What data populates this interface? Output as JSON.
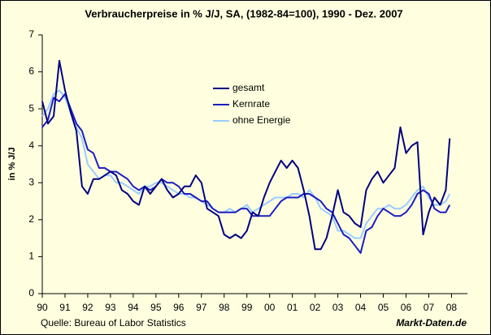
{
  "chart_data": {
    "type": "line",
    "title": "Verbraucherpreise in % J/J, SA, (1982-84=100), 1990 - Dez. 2007",
    "y_label": "in % J/J",
    "source": "Quelle: Bureau of Labor Statistics",
    "watermark": "Markt-Daten.de",
    "legend": "upper center",
    "grid": false,
    "xlim": [
      1990,
      2008.7
    ],
    "ylim": [
      0,
      7
    ],
    "yticks": [
      0,
      1,
      2,
      3,
      4,
      5,
      6,
      7
    ],
    "xticks": [
      {
        "value": 1990,
        "label": "90"
      },
      {
        "value": 1991,
        "label": "91"
      },
      {
        "value": 1992,
        "label": "92"
      },
      {
        "value": 1993,
        "label": "93"
      },
      {
        "value": 1994,
        "label": "94"
      },
      {
        "value": 1995,
        "label": "95"
      },
      {
        "value": 1996,
        "label": "96"
      },
      {
        "value": 1997,
        "label": "97"
      },
      {
        "value": 1998,
        "label": "98"
      },
      {
        "value": 1999,
        "label": "99"
      },
      {
        "value": 2000,
        "label": "00"
      },
      {
        "value": 2001,
        "label": "01"
      },
      {
        "value": 2002,
        "label": "02"
      },
      {
        "value": 2003,
        "label": "03"
      },
      {
        "value": 2004,
        "label": "04"
      },
      {
        "value": 2005,
        "label": "05"
      },
      {
        "value": 2006,
        "label": "06"
      },
      {
        "value": 2007,
        "label": "07"
      },
      {
        "value": 2008,
        "label": "08"
      }
    ],
    "x": [
      1990,
      1990.25,
      1990.5,
      1990.75,
      1991,
      1991.25,
      1991.5,
      1991.75,
      1992,
      1992.25,
      1992.5,
      1992.75,
      1993,
      1993.25,
      1993.5,
      1993.75,
      1994,
      1994.25,
      1994.5,
      1994.75,
      1995,
      1995.25,
      1995.5,
      1995.75,
      1996,
      1996.25,
      1996.5,
      1996.75,
      1997,
      1997.25,
      1997.5,
      1997.75,
      1998,
      1998.25,
      1998.5,
      1998.75,
      1999,
      1999.25,
      1999.5,
      1999.75,
      2000,
      2000.25,
      2000.5,
      2000.75,
      2001,
      2001.25,
      2001.5,
      2001.75,
      2002,
      2002.25,
      2002.5,
      2002.75,
      2003,
      2003.25,
      2003.5,
      2003.75,
      2004,
      2004.25,
      2004.5,
      2004.75,
      2005,
      2005.25,
      2005.5,
      2005.75,
      2006,
      2006.25,
      2006.5,
      2006.75,
      2007,
      2007.25,
      2007.5,
      2007.75,
      2007.92
    ],
    "series": [
      {
        "name": "gesamt",
        "color": "#000080",
        "values": [
          5.2,
          4.6,
          4.8,
          6.3,
          5.5,
          4.9,
          4.4,
          2.9,
          2.7,
          3.1,
          3.1,
          3.2,
          3.3,
          3.2,
          2.8,
          2.7,
          2.5,
          2.4,
          2.9,
          2.7,
          2.9,
          3.1,
          2.8,
          2.6,
          2.7,
          2.9,
          2.9,
          3.2,
          3.0,
          2.3,
          2.2,
          2.1,
          1.6,
          1.5,
          1.6,
          1.5,
          1.7,
          2.2,
          2.1,
          2.6,
          3.0,
          3.3,
          3.6,
          3.4,
          3.6,
          3.4,
          2.8,
          2.1,
          1.2,
          1.2,
          1.5,
          2.1,
          2.8,
          2.2,
          2.1,
          1.9,
          1.8,
          2.8,
          3.1,
          3.3,
          3.0,
          3.2,
          3.4,
          4.5,
          3.8,
          4.0,
          4.1,
          1.6,
          2.2,
          2.6,
          2.4,
          2.8,
          4.2
        ]
      },
      {
        "name": "Kernrate",
        "color": "#1c1cc0",
        "values": [
          4.5,
          4.7,
          5.3,
          5.2,
          5.4,
          5.0,
          4.6,
          4.4,
          3.9,
          3.8,
          3.4,
          3.4,
          3.3,
          3.3,
          3.2,
          3.1,
          2.9,
          2.8,
          2.9,
          2.8,
          2.9,
          3.1,
          3.0,
          3.0,
          2.9,
          2.7,
          2.7,
          2.6,
          2.5,
          2.5,
          2.3,
          2.2,
          2.2,
          2.2,
          2.2,
          2.3,
          2.3,
          2.1,
          2.1,
          2.1,
          2.1,
          2.3,
          2.5,
          2.6,
          2.6,
          2.6,
          2.7,
          2.7,
          2.6,
          2.5,
          2.3,
          2.2,
          1.9,
          1.6,
          1.5,
          1.3,
          1.1,
          1.7,
          1.8,
          2.1,
          2.3,
          2.2,
          2.1,
          2.1,
          2.2,
          2.4,
          2.7,
          2.8,
          2.7,
          2.3,
          2.2,
          2.2,
          2.4
        ]
      },
      {
        "name": "ohne Energie",
        "color": "#99ccff",
        "values": [
          4.8,
          5.0,
          5.4,
          5.5,
          5.3,
          4.9,
          4.5,
          4.2,
          3.5,
          3.3,
          3.1,
          3.2,
          3.2,
          3.0,
          3.0,
          2.9,
          2.8,
          2.7,
          2.9,
          2.9,
          3.0,
          3.0,
          2.9,
          2.8,
          2.7,
          2.7,
          2.6,
          2.6,
          2.5,
          2.4,
          2.3,
          2.2,
          2.2,
          2.3,
          2.2,
          2.3,
          2.4,
          2.2,
          2.3,
          2.4,
          2.5,
          2.6,
          2.6,
          2.6,
          2.7,
          2.7,
          2.6,
          2.8,
          2.6,
          2.3,
          2.2,
          2.1,
          1.7,
          1.7,
          1.6,
          1.5,
          1.5,
          1.9,
          2.1,
          2.3,
          2.3,
          2.4,
          2.3,
          2.3,
          2.4,
          2.6,
          2.8,
          2.9,
          2.6,
          2.4,
          2.4,
          2.5,
          2.7
        ]
      }
    ]
  }
}
